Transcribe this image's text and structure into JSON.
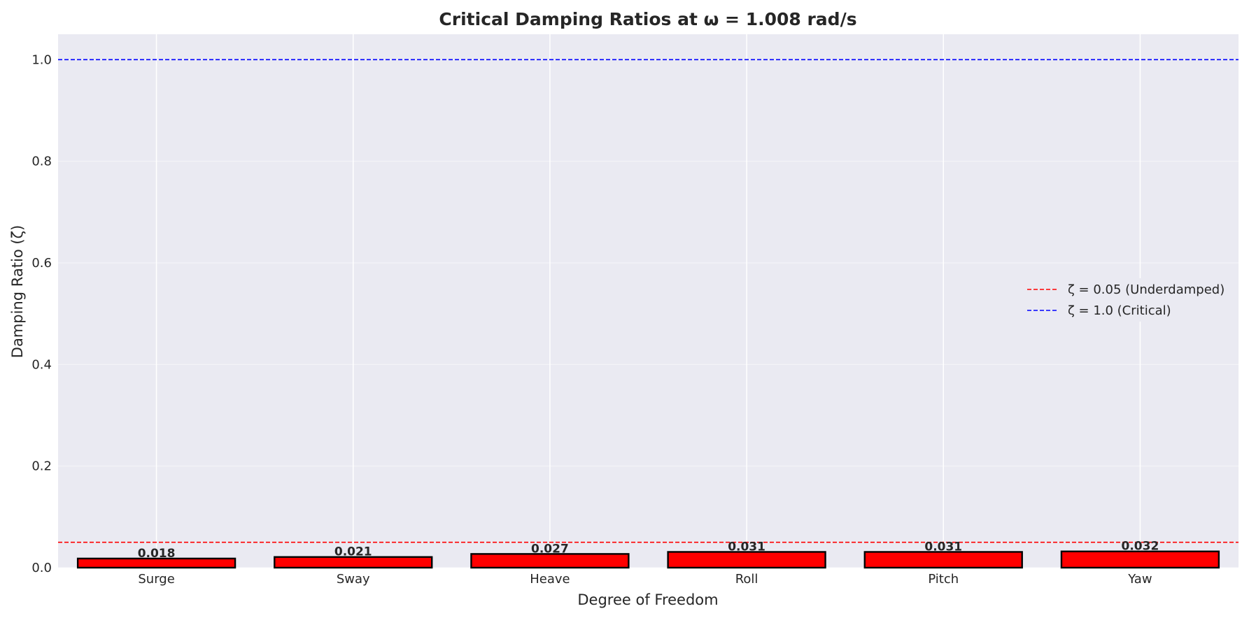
{
  "chart_data": {
    "type": "bar",
    "title": "Critical Damping Ratios at ω = 1.008 rad/s",
    "xlabel": "Degree of Freedom",
    "ylabel": "Damping Ratio (ζ)",
    "categories": [
      "Surge",
      "Sway",
      "Heave",
      "Roll",
      "Pitch",
      "Yaw"
    ],
    "values": [
      0.018,
      0.021,
      0.027,
      0.031,
      0.031,
      0.032
    ],
    "data_labels": [
      "0.018",
      "0.021",
      "0.027",
      "0.031",
      "0.031",
      "0.032"
    ],
    "ylim": [
      0,
      1.05
    ],
    "yticks": [
      0.0,
      0.2,
      0.4,
      0.6,
      0.8,
      1.0
    ],
    "ytick_labels": [
      "0.0",
      "0.2",
      "0.4",
      "0.6",
      "0.8",
      "1.0"
    ],
    "bar_color": "#ff0000",
    "bar_edge_color": "#000000",
    "background_color": "#eaeaf2",
    "grid": true,
    "reference_lines": [
      {
        "y": 0.05,
        "label": "ζ = 0.05 (Underdamped)",
        "color": "#ff0000",
        "style": "dashed"
      },
      {
        "y": 1.0,
        "label": "ζ = 1.0 (Critical)",
        "color": "#0000ff",
        "style": "dashed"
      }
    ],
    "legend_location": "center-right"
  }
}
